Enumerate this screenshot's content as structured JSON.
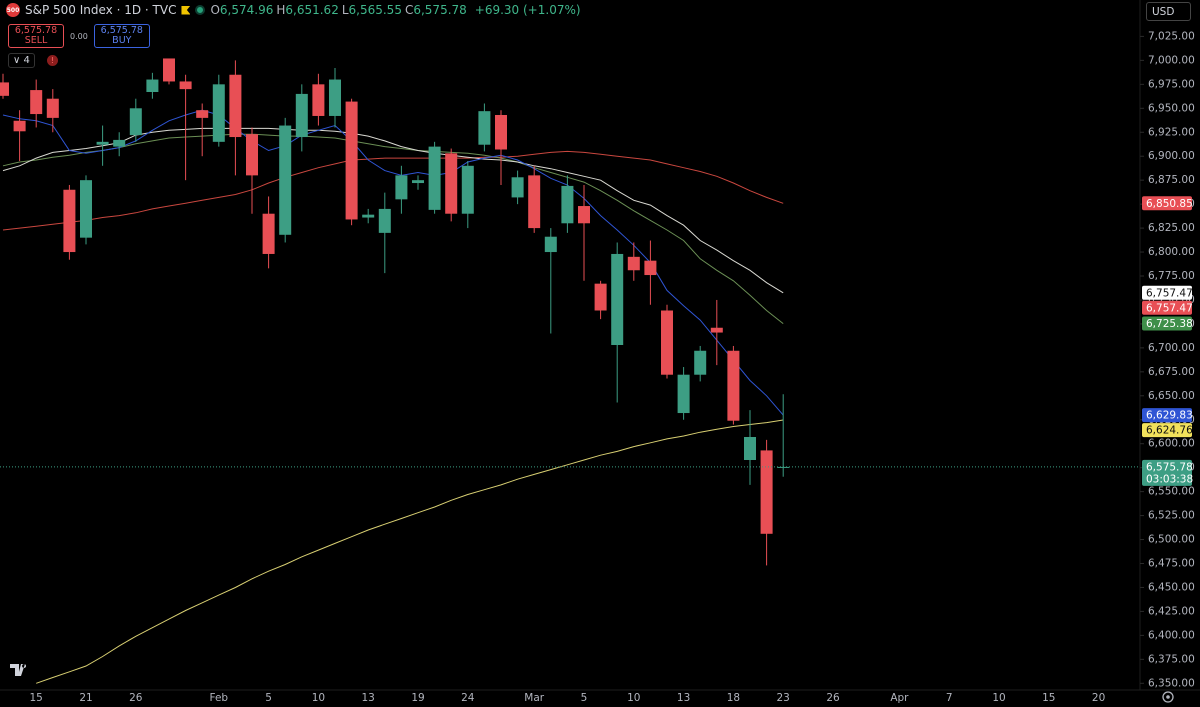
{
  "header": {
    "icon": "500",
    "title": "S&P 500 Index · 1D · TVC",
    "ohlc": [
      {
        "key": "O",
        "value": "6,574.96"
      },
      {
        "key": "H",
        "value": "6,651.62"
      },
      {
        "key": "L",
        "value": "6,565.55"
      },
      {
        "key": "C",
        "value": "6,575.78"
      }
    ],
    "change": "+69.30 (+1.07%)"
  },
  "trade": {
    "sell_price": "6,575.78",
    "sell": "SELL",
    "spread": "0.00",
    "buy_price": "6,575.78",
    "buy": "BUY"
  },
  "indicators_count": "4",
  "currency": "USD",
  "chart_data": {
    "type": "candlestick",
    "up_color": "#3d9e84",
    "down_color": "#e84f55",
    "grid": false,
    "ylim": [
      6343,
      7063
    ],
    "yticks": [
      {
        "value": 6350,
        "label": "6,350.00"
      },
      {
        "value": 6375,
        "label": "6,375.00"
      },
      {
        "value": 6400,
        "label": "6,400.00"
      },
      {
        "value": 6425,
        "label": "6,425.00"
      },
      {
        "value": 6450,
        "label": "6,450.00"
      },
      {
        "value": 6475,
        "label": "6,475.00"
      },
      {
        "value": 6500,
        "label": "6,500.00"
      },
      {
        "value": 6525,
        "label": "6,525.00"
      },
      {
        "value": 6550,
        "label": "6,550.00"
      },
      {
        "value": 6575,
        "label": "6,575.00"
      },
      {
        "value": 6600,
        "label": "6,600.00"
      },
      {
        "value": 6625,
        "label": "6,625.00"
      },
      {
        "value": 6650,
        "label": "6,650.00"
      },
      {
        "value": 6675,
        "label": "6,675.00"
      },
      {
        "value": 6700,
        "label": "6,700.00"
      },
      {
        "value": 6725,
        "label": "6,725.00"
      },
      {
        "value": 6750,
        "label": "6,750.00"
      },
      {
        "value": 6775,
        "label": "6,775.00"
      },
      {
        "value": 6800,
        "label": "6,800.00"
      },
      {
        "value": 6825,
        "label": "6,825.00"
      },
      {
        "value": 6850,
        "label": "6,850.00"
      },
      {
        "value": 6875,
        "label": "6,875.00"
      },
      {
        "value": 6900,
        "label": "6,900.00"
      },
      {
        "value": 6925,
        "label": "6,925.00"
      },
      {
        "value": 6950,
        "label": "6,950.00"
      },
      {
        "value": 6975,
        "label": "6,975.00"
      },
      {
        "value": 7000,
        "label": "7,000.00"
      },
      {
        "value": 7025,
        "label": "7,025.00"
      }
    ],
    "categories": [
      null,
      null,
      "15",
      null,
      null,
      "21",
      null,
      null,
      "26",
      null,
      null,
      null,
      null,
      "Feb",
      null,
      null,
      "5",
      null,
      null,
      "10",
      null,
      null,
      "13",
      null,
      null,
      "19",
      null,
      null,
      "24",
      null,
      null,
      null,
      "Mar",
      null,
      null,
      "5",
      null,
      null,
      "10",
      null,
      null,
      "13",
      null,
      null,
      "18",
      null,
      null,
      "23",
      null,
      null,
      "26",
      null,
      null,
      null,
      "Apr",
      null,
      null,
      "7",
      null,
      null,
      "10",
      null,
      null,
      "15",
      null,
      null,
      "20",
      null
    ],
    "open": [
      6977,
      6937,
      6969,
      6960,
      6865,
      6815,
      6912,
      6910,
      6922,
      6967,
      7002,
      6978,
      6948,
      6915,
      6985,
      6923,
      6840,
      6818,
      6920,
      6975,
      6942,
      6957,
      6836,
      6820,
      6855,
      6872,
      6844,
      6903,
      6840,
      6912,
      6943,
      6857,
      6880,
      6800,
      6830,
      6848,
      6767,
      6703,
      6795,
      6791,
      6739,
      6632,
      6672,
      6721,
      6697,
      6583,
      6593,
      6574.96,
      null,
      null,
      null,
      null,
      null,
      null,
      null,
      null,
      null,
      null,
      null,
      null,
      null,
      null,
      null,
      null,
      null,
      null,
      null,
      null
    ],
    "high": [
      6986,
      6948,
      6980,
      6970,
      6870,
      6880,
      6932,
      6925,
      6960,
      6987,
      7002,
      6985,
      6955,
      6985,
      7000,
      6930,
      6858,
      6940,
      6975,
      6986,
      6992,
      6960,
      6845,
      6862,
      6890,
      6880,
      6915,
      6908,
      6895,
      6955,
      6948,
      6885,
      6890,
      6825,
      6880,
      6870,
      6770,
      6810,
      6810,
      6812,
      6745,
      6680,
      6702,
      6750,
      6702,
      6635,
      6604,
      6651.62,
      null,
      null,
      null,
      null,
      null,
      null,
      null,
      null,
      null,
      null,
      null,
      null,
      null,
      null,
      null,
      null,
      null,
      null,
      null,
      null
    ],
    "low": [
      6960,
      6895,
      6930,
      6925,
      6792,
      6808,
      6890,
      6900,
      6915,
      6960,
      6975,
      6875,
      6900,
      6910,
      6880,
      6840,
      6783,
      6810,
      6905,
      6932,
      6930,
      6828,
      6830,
      6778,
      6840,
      6865,
      6840,
      6832,
      6825,
      6905,
      6870,
      6850,
      6820,
      6715,
      6820,
      6770,
      6730,
      6643,
      6770,
      6745,
      6668,
      6625,
      6665,
      6682,
      6620,
      6557,
      6473,
      6565.55,
      null,
      null,
      null,
      null,
      null,
      null,
      null,
      null,
      null,
      null,
      null,
      null,
      null,
      null,
      null,
      null,
      null,
      null,
      null,
      null
    ],
    "close": [
      6963,
      6926,
      6944,
      6940,
      6800,
      6875,
      6915,
      6917,
      6950,
      6980,
      6978,
      6970,
      6940,
      6975,
      6920,
      6880,
      6798,
      6932,
      6965,
      6942,
      6980,
      6834,
      6839,
      6845,
      6880,
      6875,
      6910,
      6840,
      6890,
      6947,
      6907,
      6878,
      6825,
      6816,
      6869,
      6830,
      6739,
      6798,
      6781,
      6776,
      6672,
      6672,
      6697,
      6716,
      6624,
      6607,
      6506,
      6575.78,
      null,
      null,
      null,
      null,
      null,
      null,
      null,
      null,
      null,
      null,
      null,
      null,
      null,
      null,
      null,
      null,
      null,
      null,
      null,
      null
    ],
    "lines": [
      {
        "color": "#c9473f",
        "values": [
          6823,
          6825,
          6827,
          6829,
          6831,
          6833,
          6836,
          6838,
          6841,
          6845,
          6848,
          6851,
          6854,
          6857,
          6860,
          6865,
          6872,
          6878,
          6883,
          6888,
          6892,
          6896,
          6897,
          6898,
          6898,
          6898,
          6898,
          6898,
          6898,
          6899,
          6899,
          6900,
          6902,
          6904,
          6905,
          6904,
          6902,
          6900,
          6898,
          6896,
          6892,
          6888,
          6884,
          6879,
          6872,
          6864,
          6857,
          6850.85,
          null,
          null,
          null,
          null,
          null,
          null,
          null,
          null,
          null,
          null,
          null,
          null,
          null,
          null,
          null,
          null,
          null,
          null,
          null,
          null
        ]
      },
      {
        "color": "#d8cf72",
        "values": [
          null,
          null,
          6350,
          6356,
          6362,
          6368,
          6378,
          6389,
          6399,
          6408,
          6417,
          6426,
          6434,
          6442,
          6450,
          6459,
          6467,
          6474,
          6482,
          6489,
          6496,
          6503,
          6510,
          6516,
          6522,
          6528,
          6534,
          6541,
          6547,
          6552,
          6557,
          6563,
          6568,
          6573,
          6578,
          6583,
          6588,
          6592,
          6597,
          6601,
          6605,
          6608,
          6612,
          6615,
          6618,
          6620,
          6622,
          6624.76,
          null,
          null,
          null,
          null,
          null,
          null,
          null,
          null,
          null,
          null,
          null,
          null,
          null,
          null,
          null,
          null,
          null,
          null,
          null,
          null
        ]
      },
      {
        "color": "#6b8f55",
        "values": [
          6890,
          6894,
          6896,
          6899,
          6901,
          6904,
          6906,
          6909,
          6913,
          6916,
          6919,
          6920,
          6921,
          6922,
          6923,
          6923,
          6922,
          6921,
          6921,
          6920,
          6919,
          6916,
          6913,
          6910,
          6908,
          6906,
          6905,
          6904,
          6903,
          6901,
          6898,
          6894,
          6888,
          6883,
          6878,
          6873,
          6864,
          6854,
          6843,
          6833,
          6823,
          6812,
          6793,
          6781,
          6770,
          6755,
          6739,
          6725.38,
          null,
          null,
          null,
          null,
          null,
          null,
          null,
          null,
          null,
          null,
          null,
          null,
          null,
          null,
          null,
          null,
          null,
          null,
          null,
          null
        ]
      },
      {
        "color": "#d9d9d2",
        "values": [
          6885,
          6890,
          6898,
          6904,
          6906,
          6908,
          6911,
          6914,
          6922,
          6925,
          6927,
          6928,
          6929,
          6929,
          6929,
          6929,
          6929,
          6928,
          6927,
          6927,
          6926,
          6924,
          6921,
          6916,
          6910,
          6906,
          6903,
          6901,
          6899,
          6897,
          6896,
          6894,
          6890,
          6887,
          6883,
          6879,
          6875,
          6864,
          6854,
          6849,
          6838,
          6828,
          6812,
          6802,
          6791,
          6781,
          6768,
          6757.47,
          null,
          null,
          null,
          null,
          null,
          null,
          null,
          null,
          null,
          null,
          null,
          null,
          null,
          null,
          null,
          null,
          null,
          null,
          null,
          null
        ]
      },
      {
        "color": "#2f55d4",
        "values": [
          6943,
          6939,
          6937,
          6932,
          6906,
          6903,
          6906,
          6909,
          6916,
          6927,
          6937,
          6943,
          6948,
          6943,
          6929,
          6916,
          6906,
          6911,
          6922,
          6927,
          6932,
          6916,
          6896,
          6885,
          6880,
          6883,
          6880,
          6883,
          6894,
          6898,
          6901,
          6896,
          6887,
          6877,
          6870,
          6856,
          6838,
          6823,
          6807,
          6789,
          6760,
          6744,
          6729,
          6708,
          6687,
          6666,
          6650,
          6629.83,
          null,
          null,
          null,
          null,
          null,
          null,
          null,
          null,
          null,
          null,
          null,
          null,
          null,
          null,
          null,
          null,
          null,
          null,
          null,
          null
        ]
      }
    ],
    "price_labels": [
      {
        "value": 6850.85,
        "label": "6,850.85",
        "color": "#e84f55",
        "text_color": "#ffffff"
      },
      {
        "value": 6757.47,
        "label": "6,757.47",
        "color": "#ffffff",
        "text_color": "#111111"
      },
      {
        "value": 6757.47,
        "label": "6,757.47",
        "color": "#e84f55",
        "text_color": "#ffffff"
      },
      {
        "value": 6725.38,
        "label": "6,725.38",
        "color": "#3f8f4a",
        "text_color": "#ffffff"
      },
      {
        "value": 6629.83,
        "label": "6,629.83",
        "color": "#2f55d4",
        "text_color": "#ffffff"
      },
      {
        "value": 6624.76,
        "label": "6,624.76",
        "color": "#f2e25c",
        "text_color": "#111111"
      },
      {
        "value": 6575.78,
        "label": "6,575.78",
        "color": "#3d9e84",
        "text_color": "#ffffff",
        "countdown": "03:03:38"
      }
    ]
  }
}
